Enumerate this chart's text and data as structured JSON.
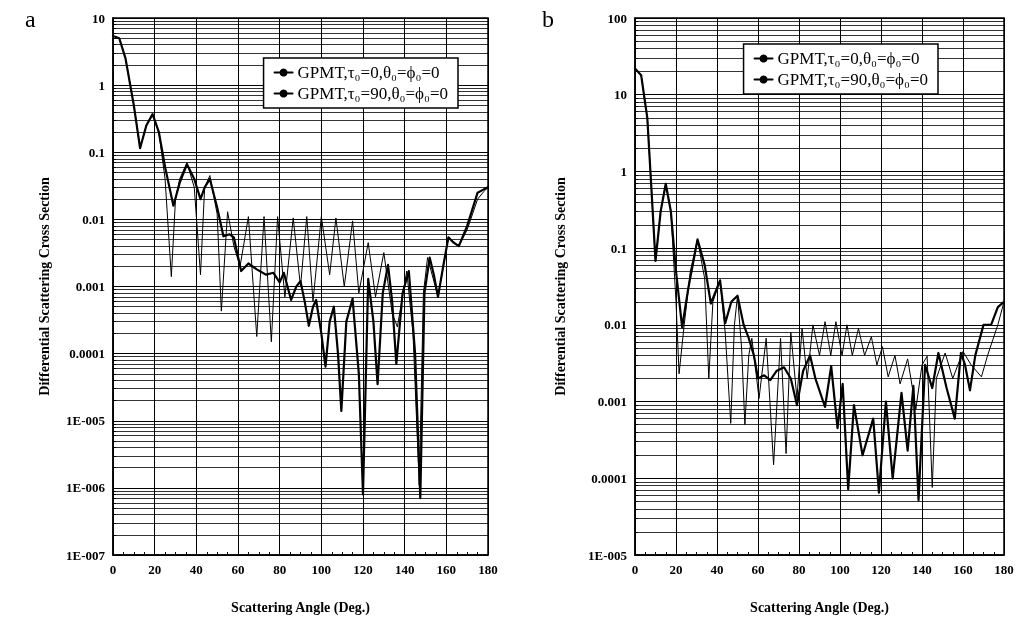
{
  "chart_data": [
    {
      "type": "line",
      "title": "a",
      "xlabel": "Scattering Angle (Deg.)",
      "ylabel": "Differential Scattering Cross Section",
      "log": "y",
      "grid": true,
      "legend": "top right",
      "marker": "none",
      "line_style": "solid",
      "xlim": [
        0,
        180
      ],
      "xticks": [
        0,
        20,
        40,
        60,
        80,
        100,
        120,
        140,
        160,
        180
      ],
      "ylim": [
        1e-07,
        10
      ],
      "yticks": [
        {
          "value": 1e-07,
          "label": "1E-007"
        },
        {
          "value": 1e-06,
          "label": "1E-006"
        },
        {
          "value": 1e-05,
          "label": "1E-005"
        },
        0.0001,
        0.001,
        0.01,
        0.1,
        1,
        10
      ],
      "series": [
        {
          "name": "GPMT,τ₀=0,θ₀=ϕ₀=0",
          "color": "#000000",
          "x": [
            0,
            3,
            6,
            10,
            13,
            16,
            19,
            22,
            25,
            29,
            32,
            35.5,
            39,
            42,
            44,
            46.5,
            50,
            53,
            56,
            58,
            61.5,
            65,
            69,
            73.5,
            77,
            80,
            82,
            85.5,
            88,
            90,
            92,
            94,
            96,
            97.5,
            100,
            102,
            104,
            106,
            108,
            109.6,
            112,
            115,
            118,
            120,
            122.5,
            125,
            127,
            129.5,
            132,
            134,
            136,
            139,
            142,
            145,
            147.5,
            149.5,
            152,
            154,
            156,
            158.5,
            161,
            163.5,
            166,
            170,
            175,
            178,
            180
          ],
          "values": [
            5.4,
            5,
            2.5,
            0.5,
            0.115,
            0.25,
            0.37,
            0.2,
            0.06,
            0.016,
            0.035,
            0.066,
            0.04,
            0.02,
            0.03,
            0.04,
            0.015,
            0.0056,
            0.006,
            0.0054,
            0.0017,
            0.0022,
            0.0018,
            0.0015,
            0.0016,
            0.00115,
            0.0016,
            0.00063,
            0.001,
            0.0012,
            0.0006,
            0.00026,
            0.0005,
            0.00063,
            0.0002,
            6.4e-05,
            0.0003,
            0.0005,
            0.0001,
            1.4e-05,
            0.0003,
            0.00066,
            5e-05,
            8e-07,
            0.0013,
            0.0003,
            3.5e-05,
            0.0008,
            0.0021,
            0.0006,
            7e-05,
            0.0008,
            0.0017,
            0.0001,
            7e-07,
            0.0008,
            0.0027,
            0.0015,
            0.0007,
            0.002,
            0.0054,
            0.0045,
            0.004,
            0.008,
            0.025,
            0.028,
            0.03
          ]
        },
        {
          "name": "GPMT,τ₀=90,θ₀=ϕ₀=0",
          "color": "#000000",
          "x": [
            0,
            3,
            6,
            10,
            13,
            16,
            19,
            22,
            25,
            28,
            30,
            32,
            35.5,
            39,
            42,
            44,
            46.5,
            50,
            52,
            55,
            58,
            61,
            65,
            69,
            72.5,
            76,
            79,
            82.5,
            86.5,
            90,
            93,
            96,
            100,
            104,
            107,
            111,
            115,
            118,
            122.5,
            126,
            130,
            134,
            136.5,
            141,
            144,
            147,
            149,
            151,
            156,
            161,
            166,
            170,
            175,
            178,
            180
          ],
          "values": [
            5.4,
            5,
            2.5,
            0.5,
            0.115,
            0.25,
            0.37,
            0.2,
            0.04,
            0.0014,
            0.02,
            0.04,
            0.07,
            0.03,
            0.0015,
            0.03,
            0.045,
            0.012,
            0.00043,
            0.013,
            0.004,
            0.002,
            0.011,
            0.00018,
            0.011,
            0.00015,
            0.011,
            0.0007,
            0.0105,
            0.001,
            0.011,
            0.0006,
            0.011,
            0.0015,
            0.0105,
            0.001,
            0.0095,
            0.0008,
            0.0045,
            0.0007,
            0.0032,
            0.0004,
            0.00025,
            0.0017,
            0.0002,
            1.1e-06,
            0.0008,
            0.0027,
            0.0007,
            0.0054,
            0.004,
            0.007,
            0.02,
            0.026,
            0.03
          ]
        }
      ]
    },
    {
      "type": "line",
      "title": "b",
      "xlabel": "Scattering Angle (Deg.)",
      "ylabel": "Differential Scattering Cross Section",
      "log": "y",
      "grid": true,
      "legend": "top right",
      "marker": "none",
      "line_style": "solid",
      "xlim": [
        0,
        180
      ],
      "xticks": [
        0,
        20,
        40,
        60,
        80,
        100,
        120,
        140,
        160,
        180
      ],
      "ylim": [
        1e-05,
        100
      ],
      "yticks": [
        {
          "value": 1e-05,
          "label": "1E-005"
        },
        0.0001,
        0.001,
        0.01,
        0.1,
        1,
        10,
        100
      ],
      "series": [
        {
          "name": "GPMT,τ₀=0,θ₀=ϕ₀=0",
          "color": "#000000",
          "x": [
            0,
            3,
            6,
            8,
            10,
            12.5,
            15,
            17.5,
            20,
            23,
            26,
            30.5,
            34,
            37,
            41.5,
            44,
            47,
            50,
            53,
            55.4,
            58,
            60,
            63,
            66,
            69,
            72.7,
            76,
            79,
            82,
            85.4,
            88,
            92.7,
            95.7,
            98.8,
            101.3,
            104,
            106.8,
            111,
            116.2,
            119,
            122.4,
            125.7,
            130,
            133,
            135.8,
            138.3,
            141.5,
            145,
            148,
            152,
            156,
            159,
            161,
            163.4,
            166,
            170,
            173.7,
            177,
            180
          ],
          "values": [
            22,
            18,
            5,
            0.6,
            0.068,
            0.3,
            0.69,
            0.3,
            0.05,
            0.0093,
            0.03,
            0.13,
            0.06,
            0.019,
            0.038,
            0.0105,
            0.02,
            0.024,
            0.01,
            0.0068,
            0.004,
            0.002,
            0.0022,
            0.0019,
            0.0025,
            0.0028,
            0.002,
            0.0009,
            0.0025,
            0.004,
            0.002,
            0.00085,
            0.0029,
            0.00045,
            0.0017,
            7.2e-05,
            0.0009,
            0.0002,
            0.0006,
            6.5e-05,
            0.001,
            0.0001,
            0.0013,
            0.00023,
            0.0016,
            5.2e-05,
            0.003,
            0.0015,
            0.0043,
            0.0015,
            0.0006,
            0.0043,
            0.003,
            0.0014,
            0.004,
            0.01,
            0.01,
            0.017,
            0.02
          ]
        },
        {
          "name": "GPMT,τ₀=90,θ₀=ϕ₀=0",
          "color": "#000000",
          "x": [
            0,
            3,
            6,
            8,
            10,
            12.5,
            15,
            17.5,
            20,
            21.5,
            24,
            27,
            30.5,
            34,
            36,
            38,
            41.5,
            44,
            46.7,
            48.5,
            50,
            52,
            53.6,
            55.5,
            57,
            60.5,
            64,
            67.6,
            71,
            73.7,
            76,
            79,
            81.5,
            84,
            86.8,
            90,
            92.7,
            95.5,
            98,
            101,
            103.4,
            106,
            109,
            112,
            115.3,
            118,
            120.7,
            123.5,
            126.8,
            129.3,
            133,
            137,
            140,
            142.5,
            145,
            147,
            151.3,
            155,
            160,
            164,
            169,
            172,
            177,
            180
          ],
          "values": [
            22,
            18,
            5,
            0.6,
            0.068,
            0.3,
            0.69,
            0.3,
            0.02,
            0.0023,
            0.01,
            0.05,
            0.13,
            0.04,
            0.002,
            0.02,
            0.038,
            0.008,
            0.00052,
            0.01,
            0.024,
            0.005,
            0.0005,
            0.004,
            0.0067,
            0.0011,
            0.0067,
            0.00015,
            0.0067,
            0.00021,
            0.008,
            0.0011,
            0.009,
            0.002,
            0.01,
            0.004,
            0.011,
            0.004,
            0.011,
            0.004,
            0.01,
            0.004,
            0.009,
            0.004,
            0.007,
            0.003,
            0.0052,
            0.0021,
            0.004,
            0.0017,
            0.0036,
            0.0008,
            0.003,
            0.0039,
            7.6e-05,
            0.002,
            0.0043,
            0.002,
            0.0045,
            0.003,
            0.0021,
            0.004,
            0.01,
            0.02
          ]
        }
      ]
    }
  ]
}
